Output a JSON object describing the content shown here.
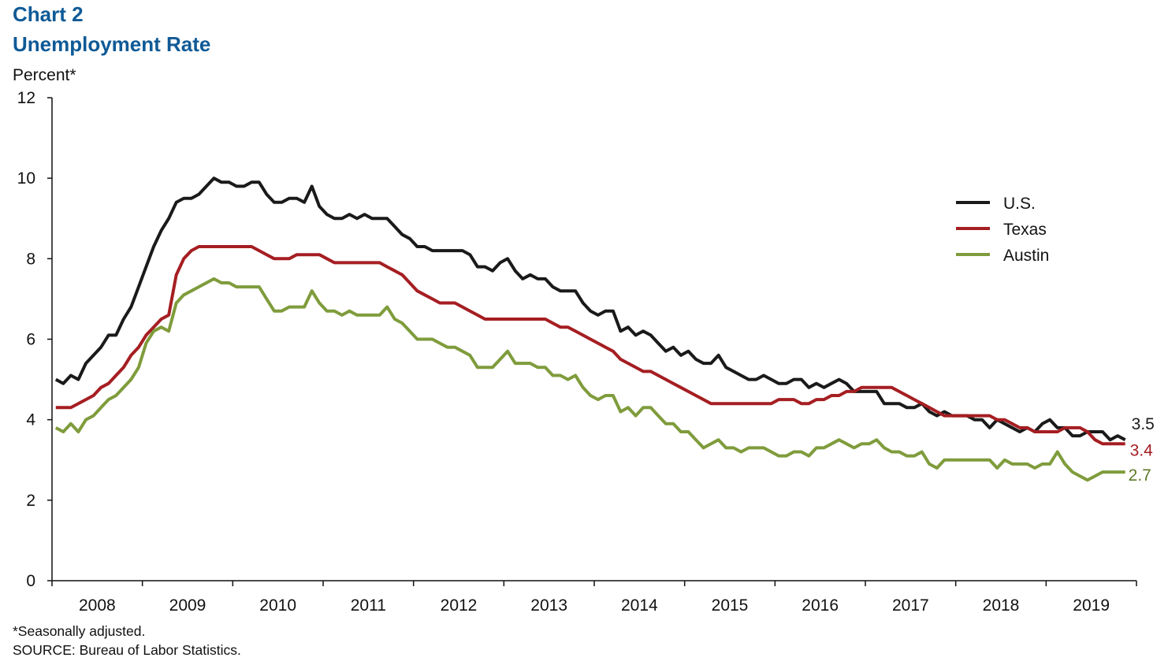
{
  "chart_data": {
    "type": "line",
    "title": "Chart 2",
    "subtitle": "Unemployment Rate",
    "ylabel": "Percent*",
    "xlabel": "",
    "ylim": [
      0,
      12
    ],
    "yticks": [
      0,
      2,
      4,
      6,
      8,
      10,
      12
    ],
    "x_start": "2008-01",
    "x_frequency": "monthly",
    "year_labels": [
      "2008",
      "2009",
      "2010",
      "2011",
      "2012",
      "2013",
      "2014",
      "2015",
      "2016",
      "2017",
      "2018",
      "2019"
    ],
    "grid": false,
    "legend_position": "right",
    "series": [
      {
        "name": "U.S.",
        "color": "#1a1a1a",
        "end_label": "3.5",
        "label_color": "#1a1a1a",
        "values": [
          5.0,
          4.9,
          5.1,
          5.0,
          5.4,
          5.6,
          5.8,
          6.1,
          6.1,
          6.5,
          6.8,
          7.3,
          7.8,
          8.3,
          8.7,
          9.0,
          9.4,
          9.5,
          9.5,
          9.6,
          9.8,
          10.0,
          9.9,
          9.9,
          9.8,
          9.8,
          9.9,
          9.9,
          9.6,
          9.4,
          9.4,
          9.5,
          9.5,
          9.4,
          9.8,
          9.3,
          9.1,
          9.0,
          9.0,
          9.1,
          9.0,
          9.1,
          9.0,
          9.0,
          9.0,
          8.8,
          8.6,
          8.5,
          8.3,
          8.3,
          8.2,
          8.2,
          8.2,
          8.2,
          8.2,
          8.1,
          7.8,
          7.8,
          7.7,
          7.9,
          8.0,
          7.7,
          7.5,
          7.6,
          7.5,
          7.5,
          7.3,
          7.2,
          7.2,
          7.2,
          6.9,
          6.7,
          6.6,
          6.7,
          6.7,
          6.2,
          6.3,
          6.1,
          6.2,
          6.1,
          5.9,
          5.7,
          5.8,
          5.6,
          5.7,
          5.5,
          5.4,
          5.4,
          5.6,
          5.3,
          5.2,
          5.1,
          5.0,
          5.0,
          5.1,
          5.0,
          4.9,
          4.9,
          5.0,
          5.0,
          4.8,
          4.9,
          4.8,
          4.9,
          5.0,
          4.9,
          4.7,
          4.7,
          4.7,
          4.7,
          4.4,
          4.4,
          4.4,
          4.3,
          4.3,
          4.4,
          4.2,
          4.1,
          4.2,
          4.1,
          4.1,
          4.1,
          4.0,
          4.0,
          3.8,
          4.0,
          3.9,
          3.8,
          3.7,
          3.8,
          3.7,
          3.9,
          4.0,
          3.8,
          3.8,
          3.6,
          3.6,
          3.7,
          3.7,
          3.7,
          3.5,
          3.6,
          3.5
        ]
      },
      {
        "name": "Texas",
        "color": "#a51e22",
        "end_label": "3.4",
        "label_color": "#a51e22",
        "values": [
          4.3,
          4.3,
          4.3,
          4.4,
          4.5,
          4.6,
          4.8,
          4.9,
          5.1,
          5.3,
          5.6,
          5.8,
          6.1,
          6.3,
          6.5,
          6.6,
          7.6,
          8.0,
          8.2,
          8.3,
          8.3,
          8.3,
          8.3,
          8.3,
          8.3,
          8.3,
          8.3,
          8.2,
          8.1,
          8.0,
          8.0,
          8.0,
          8.1,
          8.1,
          8.1,
          8.1,
          8.0,
          7.9,
          7.9,
          7.9,
          7.9,
          7.9,
          7.9,
          7.9,
          7.8,
          7.7,
          7.6,
          7.4,
          7.2,
          7.1,
          7.0,
          6.9,
          6.9,
          6.9,
          6.8,
          6.7,
          6.6,
          6.5,
          6.5,
          6.5,
          6.5,
          6.5,
          6.5,
          6.5,
          6.5,
          6.5,
          6.4,
          6.3,
          6.3,
          6.2,
          6.1,
          6.0,
          5.9,
          5.8,
          5.7,
          5.5,
          5.4,
          5.3,
          5.2,
          5.2,
          5.1,
          5.0,
          4.9,
          4.8,
          4.7,
          4.6,
          4.5,
          4.4,
          4.4,
          4.4,
          4.4,
          4.4,
          4.4,
          4.4,
          4.4,
          4.4,
          4.5,
          4.5,
          4.5,
          4.4,
          4.4,
          4.5,
          4.5,
          4.6,
          4.6,
          4.7,
          4.7,
          4.8,
          4.8,
          4.8,
          4.8,
          4.8,
          4.7,
          4.6,
          4.5,
          4.4,
          4.3,
          4.2,
          4.1,
          4.1,
          4.1,
          4.1,
          4.1,
          4.1,
          4.1,
          4.0,
          4.0,
          3.9,
          3.8,
          3.8,
          3.7,
          3.7,
          3.7,
          3.7,
          3.8,
          3.8,
          3.8,
          3.7,
          3.5,
          3.4,
          3.4,
          3.4,
          3.4
        ]
      },
      {
        "name": "Austin",
        "color": "#7f9c3c",
        "end_label": "2.7",
        "label_color": "#5e7a2a",
        "values": [
          3.8,
          3.7,
          3.9,
          3.7,
          4.0,
          4.1,
          4.3,
          4.5,
          4.6,
          4.8,
          5.0,
          5.3,
          5.9,
          6.2,
          6.3,
          6.2,
          6.9,
          7.1,
          7.2,
          7.3,
          7.4,
          7.5,
          7.4,
          7.4,
          7.3,
          7.3,
          7.3,
          7.3,
          7.0,
          6.7,
          6.7,
          6.8,
          6.8,
          6.8,
          7.2,
          6.9,
          6.7,
          6.7,
          6.6,
          6.7,
          6.6,
          6.6,
          6.6,
          6.6,
          6.8,
          6.5,
          6.4,
          6.2,
          6.0,
          6.0,
          6.0,
          5.9,
          5.8,
          5.8,
          5.7,
          5.6,
          5.3,
          5.3,
          5.3,
          5.5,
          5.7,
          5.4,
          5.4,
          5.4,
          5.3,
          5.3,
          5.1,
          5.1,
          5.0,
          5.1,
          4.8,
          4.6,
          4.5,
          4.6,
          4.6,
          4.2,
          4.3,
          4.1,
          4.3,
          4.3,
          4.1,
          3.9,
          3.9,
          3.7,
          3.7,
          3.5,
          3.3,
          3.4,
          3.5,
          3.3,
          3.3,
          3.2,
          3.3,
          3.3,
          3.3,
          3.2,
          3.1,
          3.1,
          3.2,
          3.2,
          3.1,
          3.3,
          3.3,
          3.4,
          3.5,
          3.4,
          3.3,
          3.4,
          3.4,
          3.5,
          3.3,
          3.2,
          3.2,
          3.1,
          3.1,
          3.2,
          2.9,
          2.8,
          3.0,
          3.0,
          3.0,
          3.0,
          3.0,
          3.0,
          3.0,
          2.8,
          3.0,
          2.9,
          2.9,
          2.9,
          2.8,
          2.9,
          2.9,
          3.2,
          2.9,
          2.7,
          2.6,
          2.5,
          2.6,
          2.7,
          2.7,
          2.7,
          2.7
        ]
      }
    ],
    "footnotes": [
      "*Seasonally adjusted.",
      "SOURCE: Bureau of Labor Statistics."
    ]
  }
}
